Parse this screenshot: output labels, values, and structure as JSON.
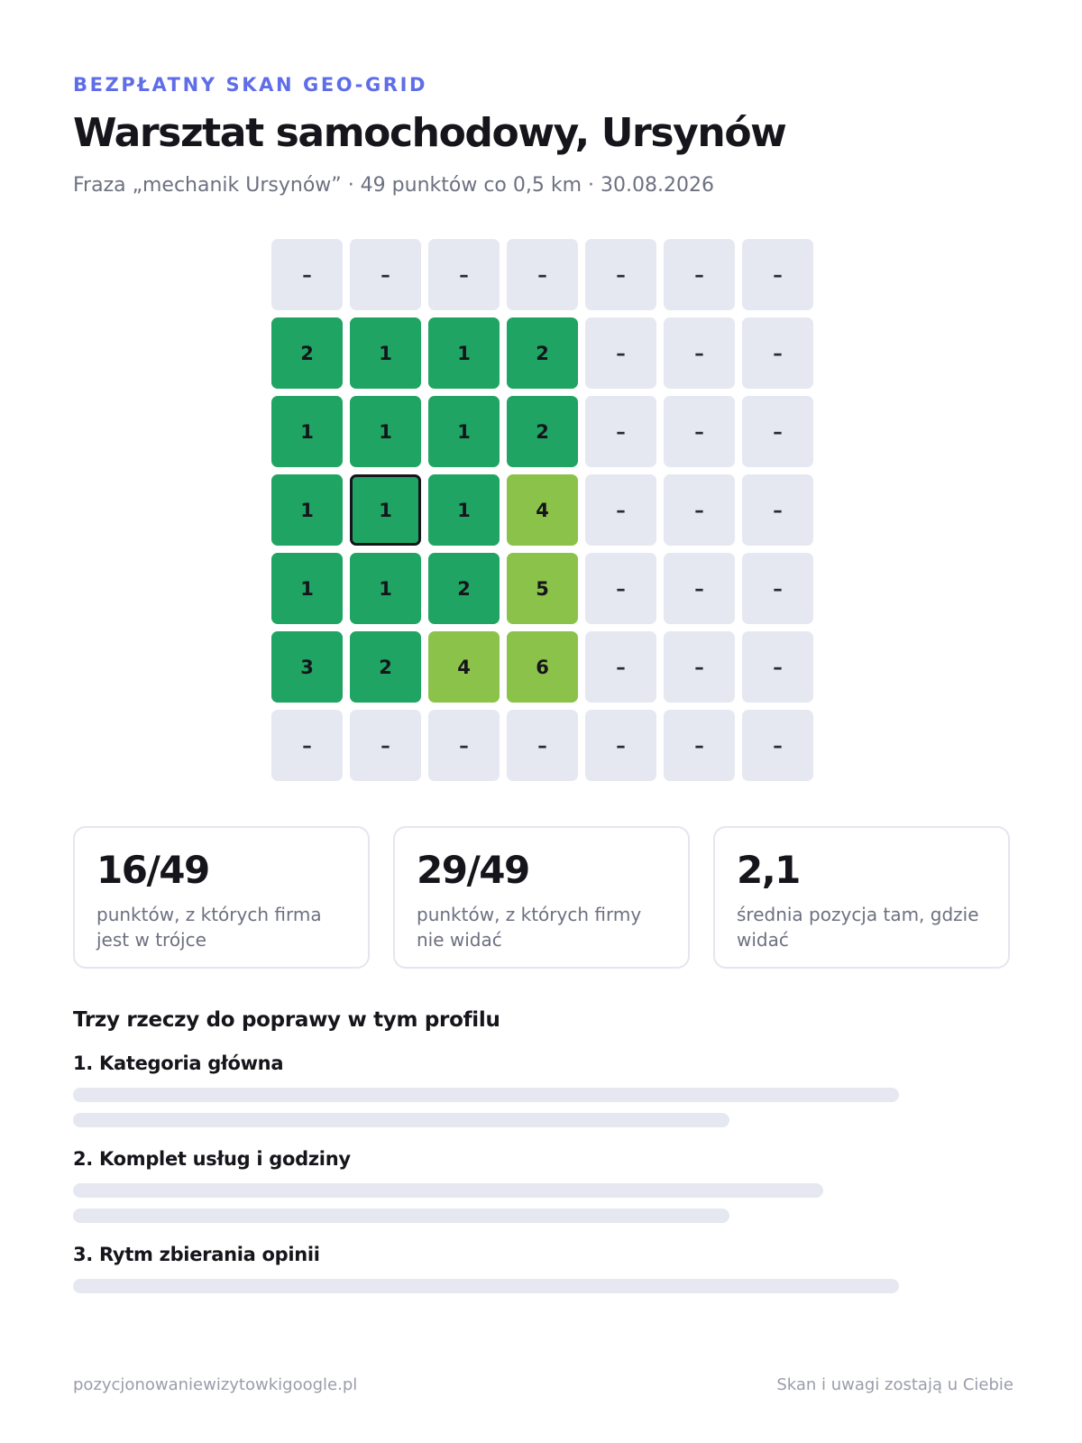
{
  "header": {
    "eyebrow": "BEZPŁATNY SKAN GEO-GRID",
    "title": "Warsztat samochodowy, Ursynów",
    "subtitle": "Fraza „mechanik Ursynów” · 49 punktów co 0,5 km · 30.08.2026"
  },
  "grid": {
    "colors": {
      "top3": "#1fa463",
      "rank4to10": "#8bc34a",
      "not_visible": "#e6e8f1"
    },
    "home_cell": {
      "row": 3,
      "col": 1
    },
    "rows": [
      [
        "–",
        "–",
        "–",
        "–",
        "–",
        "–",
        "–"
      ],
      [
        "2",
        "1",
        "1",
        "2",
        "–",
        "–",
        "–"
      ],
      [
        "1",
        "1",
        "1",
        "2",
        "–",
        "–",
        "–"
      ],
      [
        "1",
        "1",
        "1",
        "4",
        "–",
        "–",
        "–"
      ],
      [
        "1",
        "1",
        "2",
        "5",
        "–",
        "–",
        "–"
      ],
      [
        "3",
        "2",
        "4",
        "6",
        "–",
        "–",
        "–"
      ],
      [
        "–",
        "–",
        "–",
        "–",
        "–",
        "–",
        "–"
      ]
    ]
  },
  "stats": [
    {
      "value": "16/49",
      "label": "punktów, z których firma jest w trójce"
    },
    {
      "value": "29/49",
      "label": "punktów, z których firmy nie widać"
    },
    {
      "value": "2,1",
      "label": "średnia pozycja tam, gdzie widać"
    }
  ],
  "improvements": {
    "title": "Trzy rzeczy do poprawy w tym profilu",
    "items": [
      {
        "label": "1. Kategoria główna"
      },
      {
        "label": "2. Komplet usług i godziny"
      },
      {
        "label": "3. Rytm zbierania opinii"
      }
    ]
  },
  "footer": {
    "left": "pozycjonowaniewizytowkigoogle.pl",
    "right": "Skan i uwagi zostają u Ciebie"
  }
}
